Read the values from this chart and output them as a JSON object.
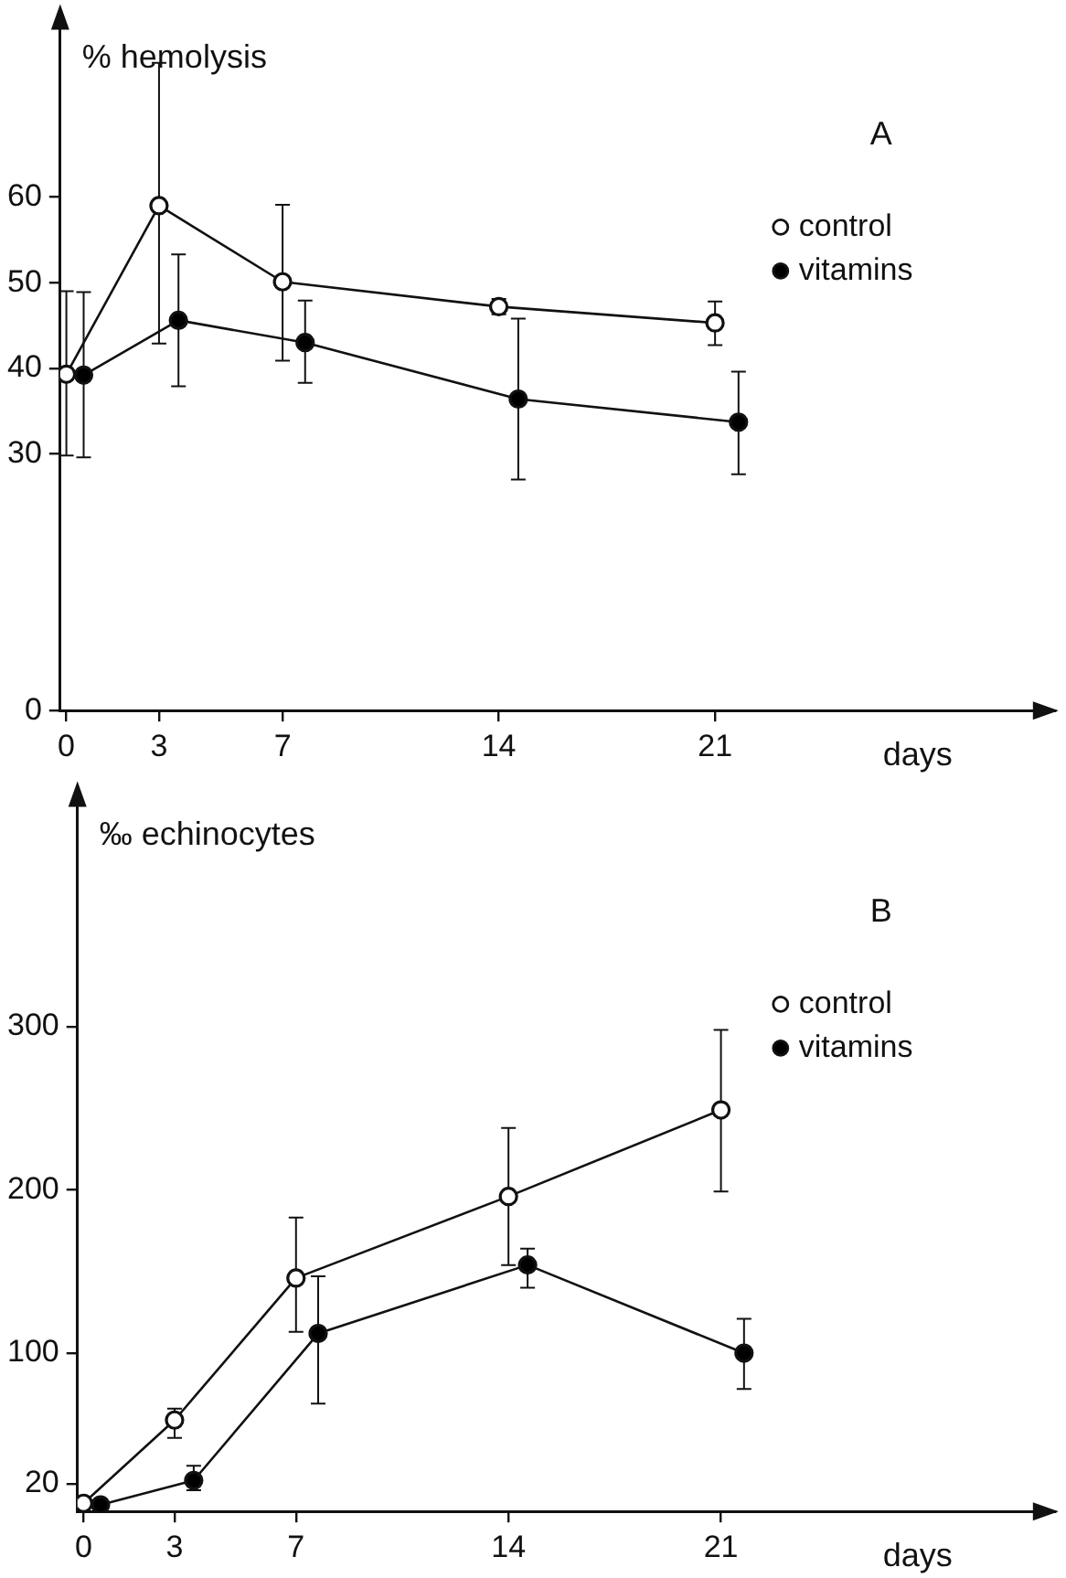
{
  "chart_data": [
    {
      "type": "line",
      "title": "A",
      "xlabel": "days",
      "ylabel": "% hemolysis",
      "xlim": [
        -0.2,
        32
      ],
      "ylim": [
        0,
        80
      ],
      "xticks": [
        0,
        3,
        7,
        14,
        21
      ],
      "yticks": [
        0,
        30,
        40,
        50,
        60
      ],
      "legend": "top right",
      "marker": "circle",
      "grid": false,
      "series": [
        {
          "name": "control",
          "color": "#ffffff",
          "x": [
            0,
            3,
            7,
            14,
            21
          ],
          "values": [
            39.3,
            59.0,
            50.1,
            47.2,
            45.3
          ],
          "errors": [
            [
              29.8,
              49.0
            ],
            [
              42.9,
              75.7
            ],
            [
              40.9,
              59.1
            ],
            [
              46.3,
              48.1
            ],
            [
              42.7,
              47.8
            ]
          ]
        },
        {
          "name": "vitamins",
          "color": "#000000",
          "x": [
            0.56,
            3.63,
            7.73,
            14.63,
            21.76
          ],
          "values": [
            39.2,
            45.6,
            43.0,
            36.4,
            33.7
          ],
          "errors": [
            [
              29.6,
              48.9
            ],
            [
              37.9,
              53.3
            ],
            [
              38.3,
              47.9
            ],
            [
              27.0,
              45.8
            ],
            [
              27.6,
              39.6
            ]
          ]
        }
      ]
    },
    {
      "type": "line",
      "title": "B",
      "xlabel": "days",
      "ylabel": "‰ echinocytes",
      "xlim": [
        -0.2,
        32
      ],
      "ylim": [
        3,
        437
      ],
      "xticks": [
        0,
        3,
        7,
        14,
        21
      ],
      "yticks": [
        20,
        100,
        200,
        300
      ],
      "legend": "top right",
      "marker": "circle",
      "grid": false,
      "series": [
        {
          "name": "control",
          "color": "#ffffff",
          "x": [
            0,
            3,
            7,
            14,
            21
          ],
          "values": [
            8,
            59,
            146,
            196,
            249
          ],
          "errors": [
            null,
            [
              48,
              66
            ],
            [
              113,
              183
            ],
            [
              154,
              238
            ],
            [
              199,
              298
            ]
          ]
        },
        {
          "name": "vitamins",
          "color": "#000000",
          "x": [
            0.56,
            3.63,
            7.73,
            14.63,
            21.76
          ],
          "values": [
            7,
            22,
            112,
            154,
            100
          ],
          "errors": [
            null,
            [
              16,
              31
            ],
            [
              69,
              147
            ],
            [
              140,
              164
            ],
            [
              78,
              121
            ]
          ]
        }
      ]
    }
  ]
}
